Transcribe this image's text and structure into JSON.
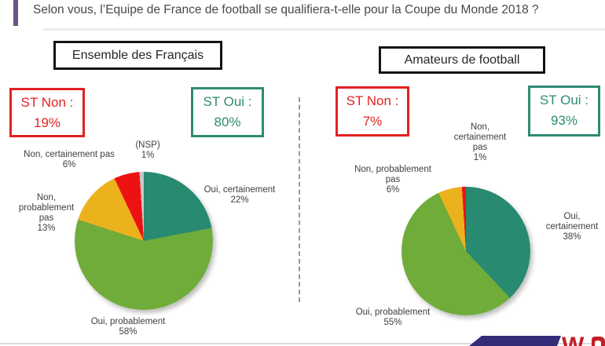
{
  "title": "Selon vous, l’Equipe de France de football se qualifiera-t-elle pour la Coupe du Monde 2018 ?",
  "panels": [
    {
      "header": "Ensemble des Français",
      "st_non": {
        "label": "ST Non :",
        "value": "19%"
      },
      "st_oui": {
        "label": "ST Oui :",
        "value": "80%"
      },
      "slice_labels": {
        "nsp": "(NSP)\n1%",
        "non_certainement": "Non, certainement pas\n6%",
        "non_probablement": "Non,\nprobablement\npas\n13%",
        "oui_certainement": "Oui, certainement\n22%",
        "oui_probablement": "Oui, probablement\n58%"
      }
    },
    {
      "header": "Amateurs de football",
      "st_non": {
        "label": "ST Non :",
        "value": "7%"
      },
      "st_oui": {
        "label": "ST Oui :",
        "value": "93%"
      },
      "slice_labels": {
        "non_certainement": "Non,\ncertainement\npas\n1%",
        "non_probablement": "Non, probablement\npas\n6%",
        "oui_certainement": "Oui,\ncertainement\n38%",
        "oui_probablement": "Oui, probablement\n55%"
      }
    }
  ],
  "logo_fragment": "W",
  "colors": {
    "title_accent_purple": "#6a5288",
    "st_non_red": "#e32121",
    "st_oui_teal": "#2e8b74",
    "slice_oui_certainement": "#288a70",
    "slice_oui_probablement": "#70ac39",
    "slice_non_probablement": "#ecb21e",
    "slice_non_certainement": "#ed1212",
    "slice_nsp": "#c8c8c8",
    "banner_navy": "#332d77",
    "logo_red": "#c41f27"
  },
  "chart_data": [
    {
      "type": "pie",
      "title": "Ensemble des Français",
      "labels": [
        "Oui, certainement",
        "Oui, probablement",
        "Non, probablement pas",
        "Non, certainement pas",
        "(NSP)"
      ],
      "values": [
        22,
        58,
        13,
        6,
        1
      ],
      "colors": [
        "#288a70",
        "#70ac39",
        "#ecb21e",
        "#ed1212",
        "#c8c8c8"
      ],
      "start_angle_deg": 0,
      "direction": "clockwise",
      "subtotals": {
        "ST Non": "19%",
        "ST Oui": "80%"
      }
    },
    {
      "type": "pie",
      "title": "Amateurs de football",
      "labels": [
        "Oui, certainement",
        "Oui, probablement",
        "Non, probablement pas",
        "Non, certainement pas"
      ],
      "values": [
        38,
        55,
        6,
        1
      ],
      "colors": [
        "#288a70",
        "#70ac39",
        "#ecb21e",
        "#ed1212"
      ],
      "start_angle_deg": 0,
      "direction": "clockwise",
      "subtotals": {
        "ST Non": "7%",
        "ST Oui": "93%"
      }
    }
  ]
}
